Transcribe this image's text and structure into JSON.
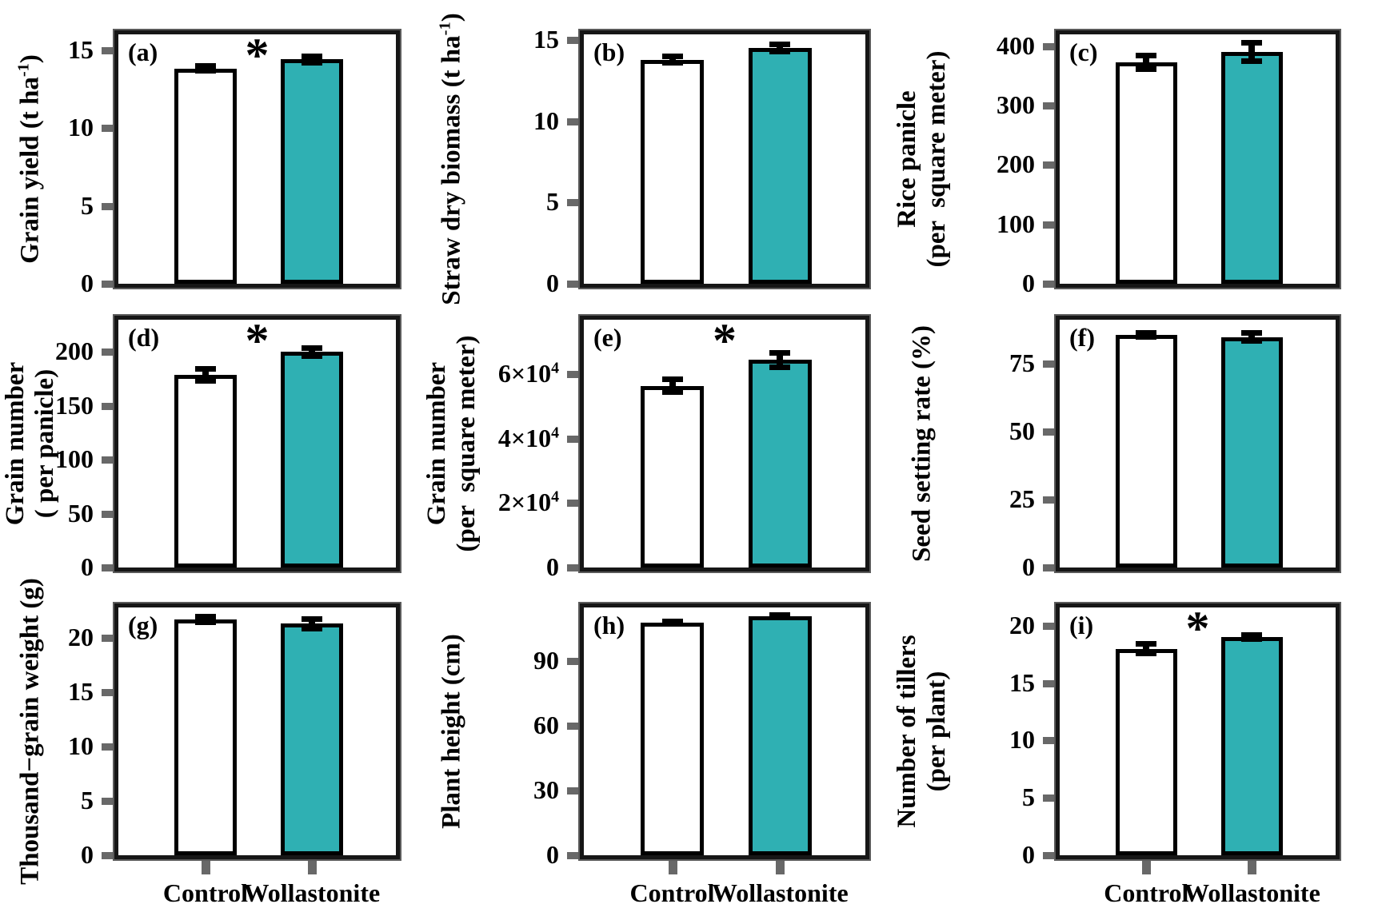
{
  "figure": {
    "description_labels": {
      "significance_marker": "*"
    },
    "colors": {
      "control_fill": "#ffffff",
      "wollastonite_fill": "#2FB0B3",
      "bar_border": "#000000",
      "frame": "#161616",
      "frame_outline": "#5a5a5a",
      "tick": "#686868",
      "text": "#000000"
    }
  },
  "chart_data": {
    "type": "bar",
    "categories": [
      "Control",
      "Wollastonite"
    ],
    "panels": [
      {
        "letter": "(a)",
        "ylabel_lines": [
          "Grain yield (t ha^{-1})"
        ],
        "ymax": 16,
        "ticks": [
          {
            "v": 0,
            "label": "0"
          },
          {
            "v": 5,
            "label": "5"
          },
          {
            "v": 10,
            "label": "10"
          },
          {
            "v": 15,
            "label": "15"
          }
        ],
        "series": [
          {
            "name": "Control",
            "value": 13.8,
            "err": 0.18
          },
          {
            "name": "Wollastonite",
            "value": 14.4,
            "err": 0.22
          }
        ],
        "significant": true
      },
      {
        "letter": "(b)",
        "ylabel_lines": [
          "Straw dry biomass (t ha^{-1})"
        ],
        "ymax": 15.35,
        "ticks": [
          {
            "v": 0,
            "label": "0"
          },
          {
            "v": 5,
            "label": "5"
          },
          {
            "v": 10,
            "label": "10"
          },
          {
            "v": 15,
            "label": "15"
          }
        ],
        "series": [
          {
            "name": "Control",
            "value": 13.8,
            "err": 0.2
          },
          {
            "name": "Wollastonite",
            "value": 14.5,
            "err": 0.25
          }
        ],
        "significant": false
      },
      {
        "letter": "(c)",
        "ylabel_lines": [
          "Rice panicle",
          "(per  square meter)"
        ],
        "ymax": 420,
        "ticks": [
          {
            "v": 0,
            "label": "0"
          },
          {
            "v": 100,
            "label": "100"
          },
          {
            "v": 200,
            "label": "200"
          },
          {
            "v": 300,
            "label": "300"
          },
          {
            "v": 400,
            "label": "400"
          }
        ],
        "series": [
          {
            "name": "Control",
            "value": 373,
            "err": 12
          },
          {
            "name": "Wollastonite",
            "value": 390,
            "err": 16
          }
        ],
        "significant": false
      },
      {
        "letter": "(d)",
        "ylabel_lines": [
          "Grain number",
          "( per panicle)"
        ],
        "ymax": 230,
        "ticks": [
          {
            "v": 0,
            "label": "0"
          },
          {
            "v": 50,
            "label": "50"
          },
          {
            "v": 100,
            "label": "100"
          },
          {
            "v": 150,
            "label": "150"
          },
          {
            "v": 200,
            "label": "200"
          }
        ],
        "series": [
          {
            "name": "Control",
            "value": 179,
            "err": 6
          },
          {
            "name": "Wollastonite",
            "value": 200,
            "err": 4
          }
        ],
        "significant": true
      },
      {
        "letter": "(e)",
        "ylabel_lines": [
          "Grain number",
          "(per  square meter)"
        ],
        "ymax": 77000,
        "ticks": [
          {
            "v": 0,
            "label": "0"
          },
          {
            "v": 20000,
            "label": "2×10^{4}"
          },
          {
            "v": 40000,
            "label": "4×10^{4}"
          },
          {
            "v": 60000,
            "label": "6×10^{4}"
          }
        ],
        "series": [
          {
            "name": "Control",
            "value": 56500,
            "err": 2000
          },
          {
            "name": "Wollastonite",
            "value": 64500,
            "err": 2300
          }
        ],
        "significant": true
      },
      {
        "letter": "(f)",
        "ylabel_lines": [
          "Seed setting rate (%)"
        ],
        "ymax": 91,
        "ticks": [
          {
            "v": 0,
            "label": "0"
          },
          {
            "v": 25,
            "label": "25"
          },
          {
            "v": 50,
            "label": "50"
          },
          {
            "v": 75,
            "label": "75"
          }
        ],
        "series": [
          {
            "name": "Control",
            "value": 85.5,
            "err": 0.9
          },
          {
            "name": "Wollastonite",
            "value": 84.6,
            "err": 1.6
          }
        ],
        "significant": false
      },
      {
        "letter": "(g)",
        "ylabel_lines": [
          "Thousand−grain weight (g)"
        ],
        "ymax": 22.8,
        "ticks": [
          {
            "v": 0,
            "label": "0"
          },
          {
            "v": 5,
            "label": "5"
          },
          {
            "v": 10,
            "label": "10"
          },
          {
            "v": 15,
            "label": "15"
          },
          {
            "v": 20,
            "label": "20"
          }
        ],
        "series": [
          {
            "name": "Control",
            "value": 21.7,
            "err": 0.3
          },
          {
            "name": "Wollastonite",
            "value": 21.3,
            "err": 0.45
          }
        ],
        "significant": false
      },
      {
        "letter": "(h)",
        "ylabel_lines": [
          "Plant height (cm)"
        ],
        "ymax": 115,
        "ticks": [
          {
            "v": 0,
            "label": "0"
          },
          {
            "v": 30,
            "label": "30"
          },
          {
            "v": 60,
            "label": "60"
          },
          {
            "v": 90,
            "label": "90"
          }
        ],
        "series": [
          {
            "name": "Control",
            "value": 108,
            "err": 0.8
          },
          {
            "name": "Wollastonite",
            "value": 111,
            "err": 0.5
          }
        ],
        "significant": false
      },
      {
        "letter": "(i)",
        "ylabel_lines": [
          "Number of tillers",
          "(per plant)"
        ],
        "ymax": 21.6,
        "ticks": [
          {
            "v": 0,
            "label": "0"
          },
          {
            "v": 5,
            "label": "5"
          },
          {
            "v": 10,
            "label": "10"
          },
          {
            "v": 15,
            "label": "15"
          },
          {
            "v": 20,
            "label": "20"
          }
        ],
        "series": [
          {
            "name": "Control",
            "value": 18,
            "err": 0.45
          },
          {
            "name": "Wollastonite",
            "value": 19,
            "err": 0.2
          }
        ],
        "significant": true
      }
    ],
    "legend_position": "none",
    "grid": false
  }
}
